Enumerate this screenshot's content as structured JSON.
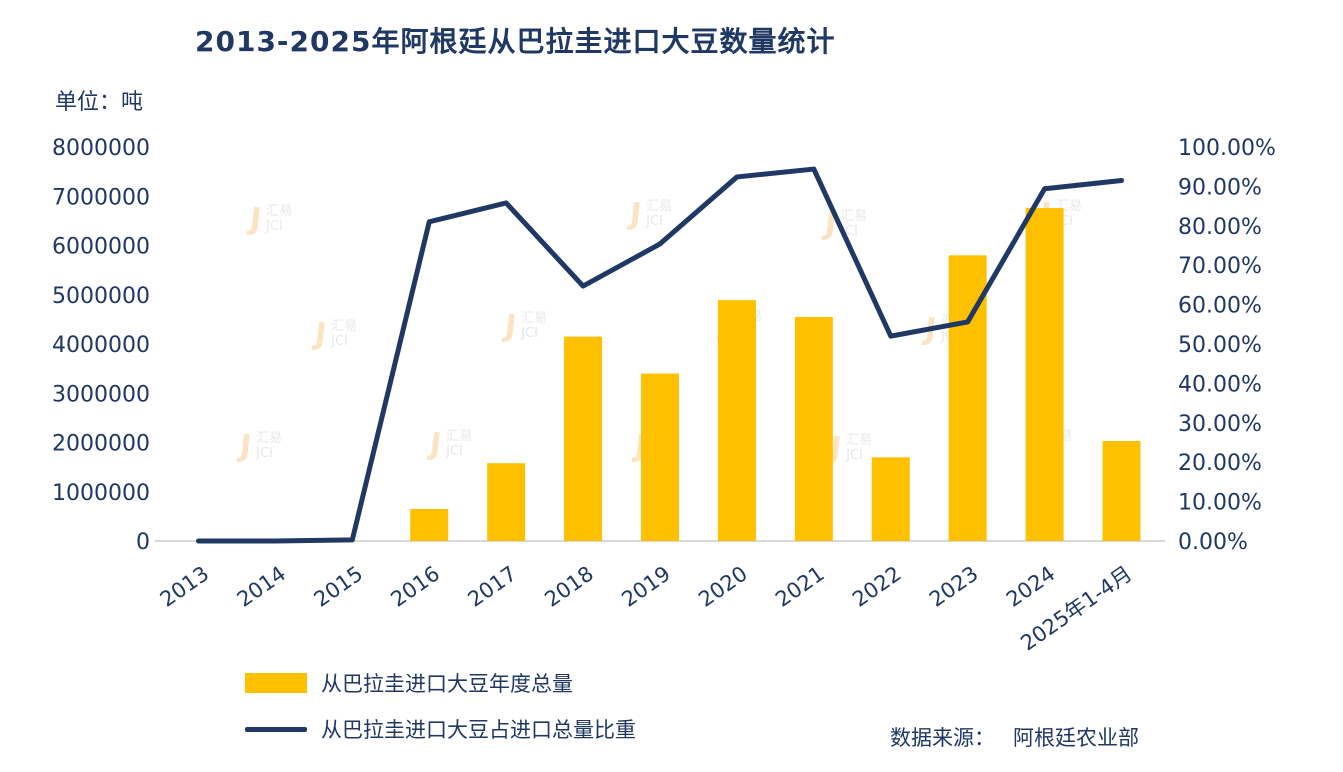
{
  "title": "2013-2025年阿根廷从巴拉圭进口大豆数量统计",
  "unit_label": "单位：吨",
  "source": {
    "label": "数据来源：",
    "value": "阿根廷农业部"
  },
  "watermark": {
    "cn": "汇易",
    "en": "JCI"
  },
  "colors": {
    "bar": "#FFC000",
    "line": "#1F3864",
    "text": "#1F3864",
    "axis_line": "#c9cdd4"
  },
  "legend": [
    {
      "label": "从巴拉圭进口大豆年度总量",
      "type": "bar"
    },
    {
      "label": "从巴拉圭进口大豆占进口总量比重",
      "type": "line"
    }
  ],
  "chart_data": {
    "type": "bar",
    "subtype": "combo-bar-line",
    "title": "2013-2025年阿根廷从巴拉圭进口大豆数量统计",
    "categories": [
      "2013",
      "2014",
      "2015",
      "2016",
      "2017",
      "2018",
      "2019",
      "2020",
      "2021",
      "2022",
      "2023",
      "2024",
      "2025年1-4月"
    ],
    "series": [
      {
        "name": "从巴拉圭进口大豆年度总量",
        "type": "bar",
        "axis": "left",
        "values": [
          0,
          0,
          0,
          650000,
          1580000,
          4150000,
          3400000,
          4890000,
          4550000,
          1700000,
          5800000,
          6760000,
          2030000
        ]
      },
      {
        "name": "从巴拉圭进口大豆占进口总量比重",
        "type": "line",
        "axis": "right",
        "values": [
          0,
          0,
          0.003,
          0.81,
          0.858,
          0.647,
          0.754,
          0.924,
          0.944,
          0.52,
          0.556,
          0.894,
          0.915
        ]
      }
    ],
    "left_axis": {
      "min": 0,
      "max": 8000000,
      "step": 1000000,
      "label": "单位：吨"
    },
    "right_axis": {
      "min": 0,
      "max": 1,
      "step": 0.1,
      "format": "percent"
    },
    "grid": false,
    "legend_position": "bottom-left"
  }
}
